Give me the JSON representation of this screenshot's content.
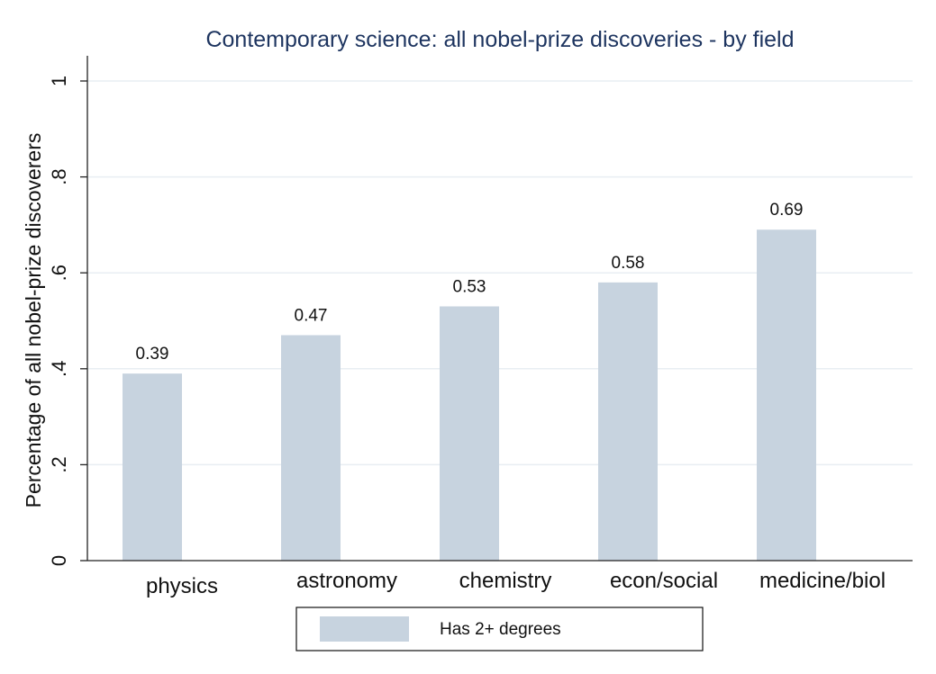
{
  "chart_data": {
    "type": "bar",
    "title": "Contemporary science: all nobel-prize discoveries - by field",
    "xlabel": "",
    "ylabel": "Percentage of all nobel-prize discoverers",
    "categories": [
      "physics",
      "astronomy",
      "chemistry",
      "econ/social",
      "medicine/biol"
    ],
    "series": [
      {
        "name": "Has 2+ degrees",
        "values": [
          0.39,
          0.47,
          0.53,
          0.58,
          0.69
        ],
        "color": "#c7d3df"
      }
    ],
    "data_labels": [
      "0.39",
      "0.47",
      "0.53",
      "0.58",
      "0.69"
    ],
    "ylim": [
      0,
      1.05
    ],
    "yticks": [
      0,
      0.2,
      0.4,
      0.6,
      0.8,
      1
    ],
    "ytick_labels": [
      "0",
      ".2",
      ".4",
      ".6",
      ".8",
      "1"
    ],
    "grid": true,
    "legend_position": "bottom-center",
    "colors": {
      "title": "#1e3560",
      "grid": "#e8eef3",
      "bar": "#c7d3df"
    }
  }
}
